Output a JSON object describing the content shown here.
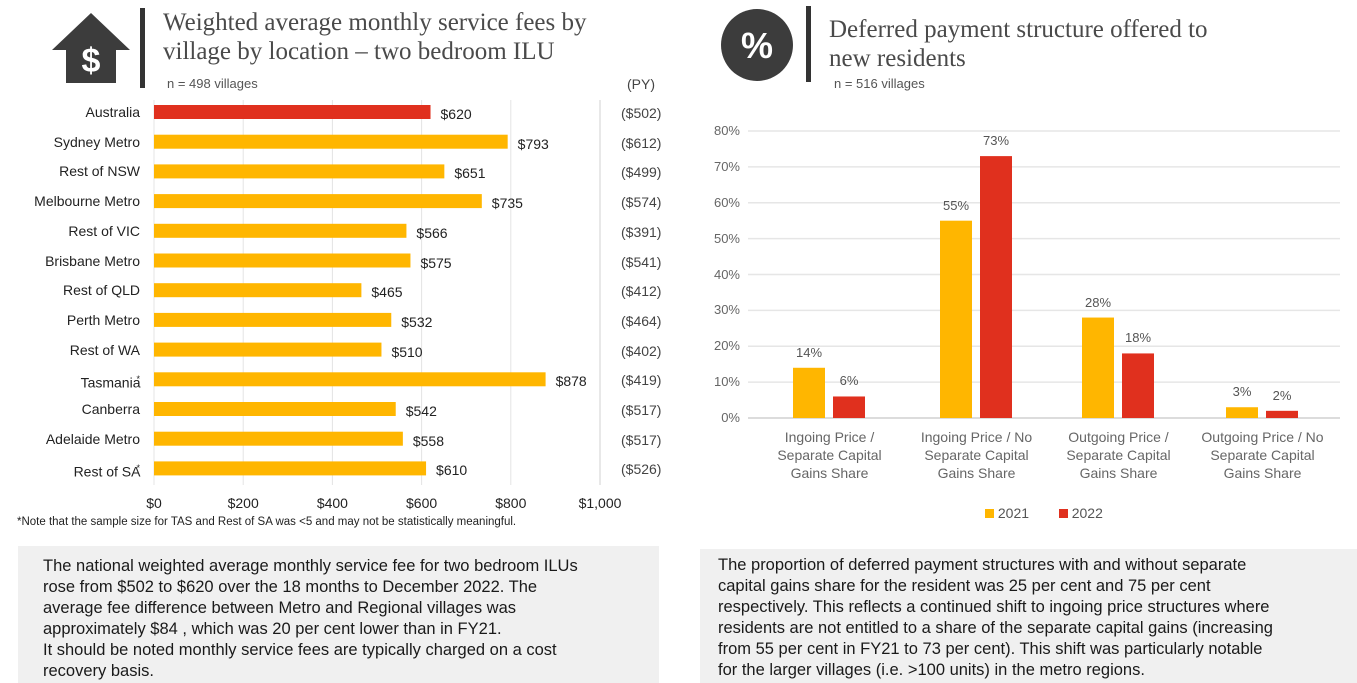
{
  "left_panel": {
    "icon": "house-dollar-icon",
    "title_line1": "Weighted average monthly service fees by",
    "title_line2": "village by location – two bedroom ILU",
    "sample": "n = 498 villages",
    "py_header": "(PY)",
    "footnote": "*Note that the sample size for TAS and Rest of SA was <5 and may not be statistically meaningful.",
    "summary_lines": [
      "The national weighted average monthly service fee for two bedroom ILUs",
      "rose from $502 to $620 over the 18 months to December 2022. The",
      "average fee difference between Metro and Regional villages was",
      "approximately $84 , which was 20 per cent lower than in FY21.",
      "It should be noted monthly service fees are typically charged on a cost",
      "recovery basis."
    ]
  },
  "right_panel": {
    "icon": "percent-circle-icon",
    "title_line1": "Deferred payment structure offered to",
    "title_line2": "new residents",
    "sample": "n = 516 villages",
    "summary_lines": [
      "The proportion of deferred payment structures with and without separate",
      "capital gains share for the resident was 25 per cent and 75 per cent",
      "respectively. This reflects a continued shift to ingoing  price structures where",
      "residents are not entitled to a share of the separate capital gains (increasing",
      "from 55 per cent in FY21 to 73 per cent). This shift was particularly notable",
      "for the larger villages (i.e. >100 units) in the metro regions."
    ]
  },
  "colors": {
    "highlight": "#e0301e",
    "primary": "#ffb600",
    "grid": "#e0e0e0",
    "icon": "#3c3c3c",
    "textbox_bg": "#f0f0f0"
  },
  "chart_data": [
    {
      "type": "bar",
      "orientation": "horizontal",
      "title": "Weighted average monthly service fees by village by location – two bedroom ILU",
      "subtitle": "n = 498 villages",
      "categories": [
        "Australia",
        "Sydney Metro",
        "Rest of NSW",
        "Melbourne Metro",
        "Rest of VIC",
        "Brisbane Metro",
        "Rest of QLD",
        "Perth Metro",
        "Rest of WA",
        "Tasmania*",
        "Canberra",
        "Adelaide Metro",
        "Rest of SA*"
      ],
      "values": [
        620,
        793,
        651,
        735,
        566,
        575,
        465,
        532,
        510,
        878,
        542,
        558,
        610
      ],
      "value_labels": [
        "$620",
        "$793",
        "$651",
        "$735",
        "$566",
        "$575",
        "$465",
        "$532",
        "$510",
        "$878",
        "$542",
        "$558",
        "$610"
      ],
      "highlight_index": 0,
      "prior_year_header": "(PY)",
      "prior_year_labels": [
        "($502)",
        "($612)",
        "($499)",
        "($574)",
        "($391)",
        "($541)",
        "($412)",
        "($464)",
        "($402)",
        "($419)",
        "($517)",
        "($517)",
        "($526)"
      ],
      "prior_year_values": [
        502,
        612,
        499,
        574,
        391,
        541,
        412,
        464,
        402,
        419,
        517,
        517,
        526
      ],
      "xlim": [
        0,
        1000
      ],
      "xticks": [
        0,
        200,
        400,
        600,
        800,
        1000
      ],
      "xtick_labels": [
        "$0",
        "$200",
        "$400",
        "$600",
        "$800",
        "$1,000"
      ],
      "grid": true,
      "xlabel": "",
      "ylabel": ""
    },
    {
      "type": "bar",
      "orientation": "vertical",
      "title": "Deferred payment structure offered to new residents",
      "subtitle": "n = 516 villages",
      "categories": [
        [
          "Ingoing Price /",
          "Separate Capital",
          "Gains Share"
        ],
        [
          "Ingoing Price / No",
          "Separate Capital",
          "Gains Share"
        ],
        [
          "Outgoing Price /",
          "Separate Capital",
          "Gains Share"
        ],
        [
          "Outgoing Price / No",
          "Separate Capital",
          "Gains Share"
        ]
      ],
      "series": [
        {
          "name": "2021",
          "values": [
            14,
            55,
            28,
            3
          ],
          "labels": [
            "14%",
            "55%",
            "28%",
            "3%"
          ],
          "color": "#ffb600"
        },
        {
          "name": "2022",
          "values": [
            6,
            73,
            18,
            2
          ],
          "labels": [
            "6%",
            "73%",
            "18%",
            "2%"
          ],
          "color": "#e0301e"
        }
      ],
      "ylim": [
        0,
        80
      ],
      "yticks": [
        0,
        10,
        20,
        30,
        40,
        50,
        60,
        70,
        80
      ],
      "ytick_labels": [
        "0%",
        "10%",
        "20%",
        "30%",
        "40%",
        "50%",
        "60%",
        "70%",
        "80%"
      ],
      "grid": true,
      "legend": "bottom-center",
      "xlabel": "",
      "ylabel": ""
    }
  ]
}
